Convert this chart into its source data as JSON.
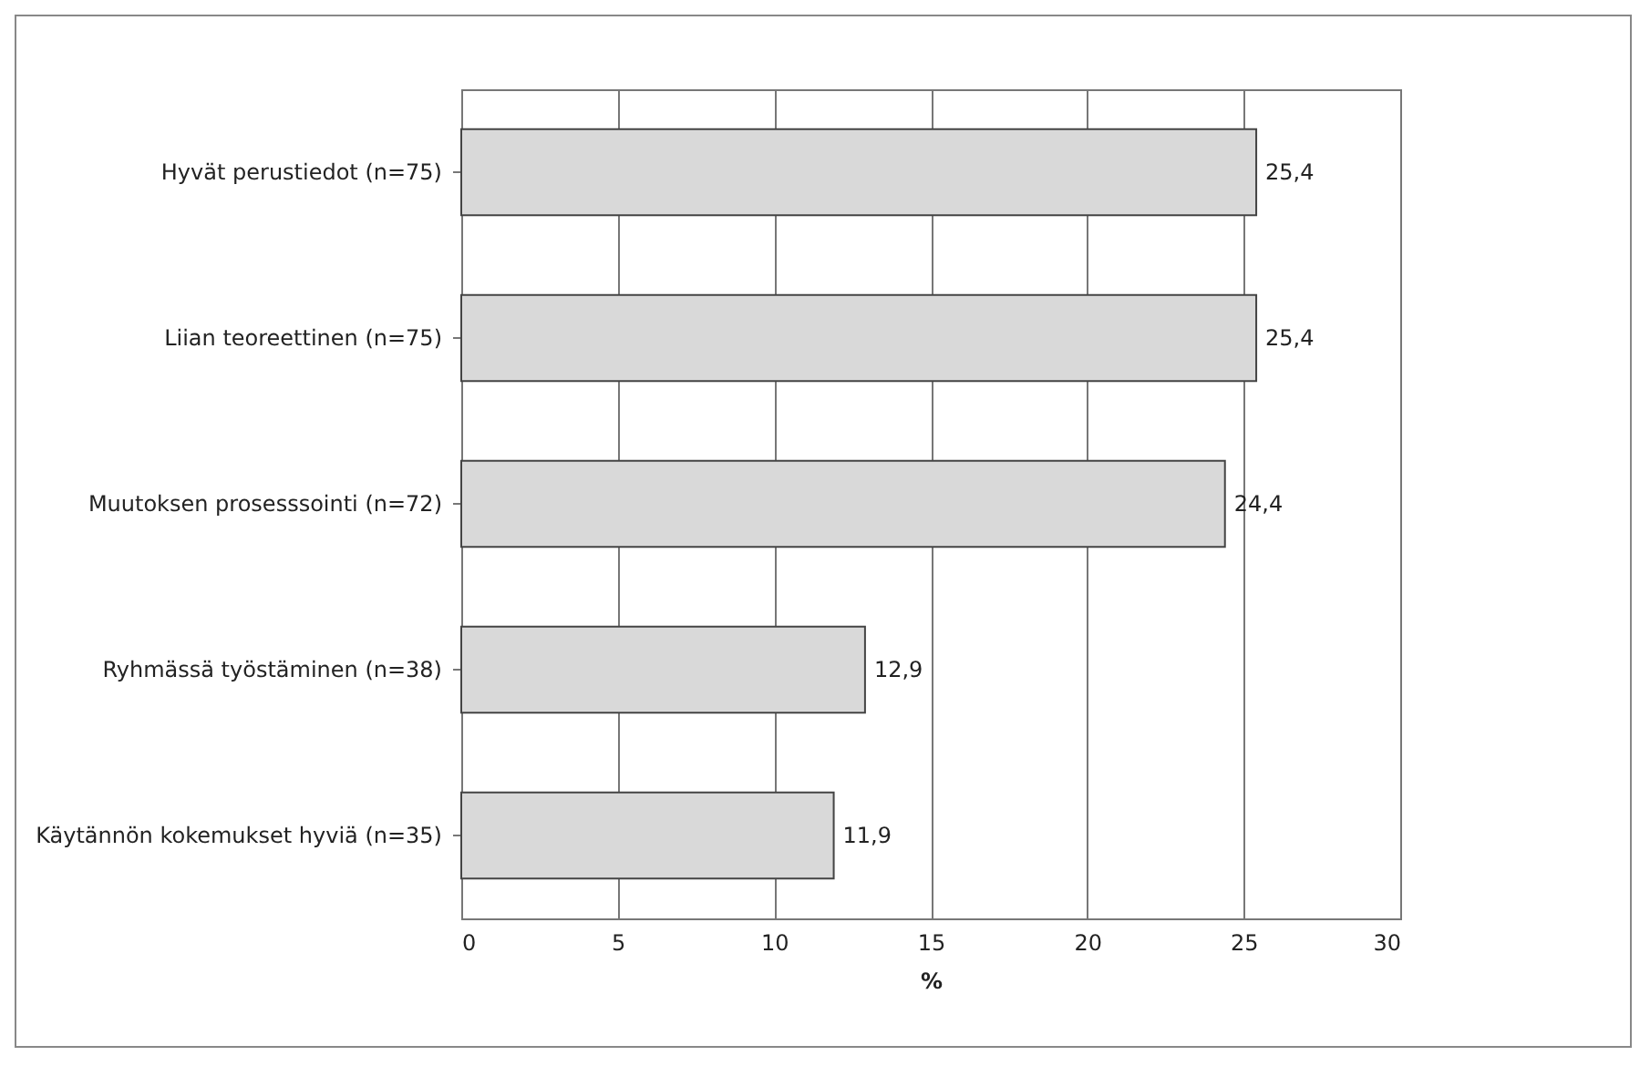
{
  "chart_data": {
    "type": "bar",
    "orientation": "horizontal",
    "xlabel": "%",
    "categories": [
      "Hyvät perustiedot  (n=75)",
      "Liian teoreettinen  (n=75)",
      "Muutoksen prosesssointi  (n=72)",
      "Ryhmässä työstäminen  (n=38)",
      "Käytännön kokemukset hyviä (n=35)"
    ],
    "values": [
      25.4,
      25.4,
      24.4,
      12.9,
      11.9
    ],
    "value_labels": [
      "25,4",
      "25,4",
      "24,4",
      "12,9",
      "11,9"
    ],
    "color": "#d9d9d9",
    "xlim": [
      0,
      30
    ],
    "xticks": [
      0,
      5,
      10,
      15,
      20,
      25,
      30
    ],
    "grid": "x"
  }
}
